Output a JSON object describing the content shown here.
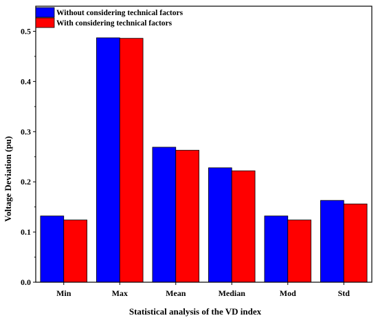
{
  "chart_data": {
    "type": "bar",
    "categories": [
      "Min",
      "Max",
      "Mean",
      "Median",
      "Mod",
      "Std"
    ],
    "series": [
      {
        "name": "Without considering technical factors",
        "color": "#0000ff",
        "values": [
          0.132,
          0.487,
          0.269,
          0.228,
          0.132,
          0.163
        ]
      },
      {
        "name": "With considering technical factors",
        "color": "#ff0000",
        "values": [
          0.124,
          0.486,
          0.263,
          0.222,
          0.124,
          0.156
        ]
      }
    ],
    "xlabel": "Statistical analysis of the VD index",
    "ylabel": "Voltage Deviation (pu)",
    "ylim": [
      0,
      0.55
    ],
    "yticks": [
      0.0,
      0.1,
      0.2,
      0.3,
      0.4,
      0.5
    ],
    "ytick_labels": [
      "0.0",
      "0.1",
      "0.2",
      "0.3",
      "0.4",
      "0.5"
    ],
    "legend_position": "top-left",
    "grid": false
  }
}
